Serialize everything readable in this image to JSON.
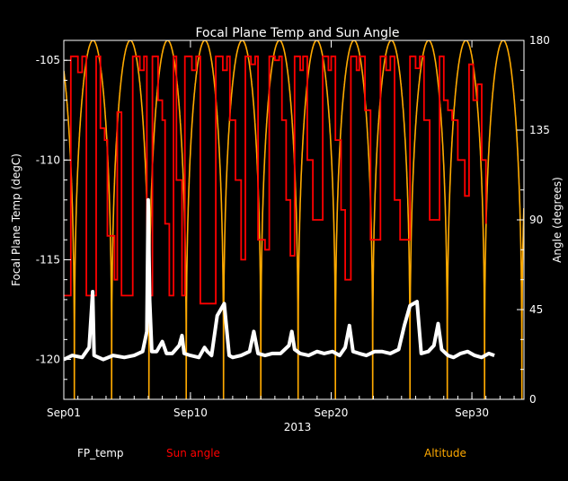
{
  "chart_data": {
    "type": "line",
    "title": "Focal Plane Temp and Sun Angle",
    "xlabel": "2013",
    "ylabel_left": "Focal Plane Temp (degC)",
    "ylabel_right": "Angle (degrees)",
    "x_ticks": [
      "Sep01",
      "Sep10",
      "Sep20",
      "Sep30"
    ],
    "x_tick_days": [
      1,
      10,
      20,
      30
    ],
    "xlim_days": [
      1,
      33.7
    ],
    "ylim_left": [
      -122,
      -104
    ],
    "ylim_right": [
      0,
      180
    ],
    "y_ticks_left": [
      -120,
      -115,
      -110,
      -105
    ],
    "y_ticks_right": [
      0,
      45,
      90,
      135,
      180
    ],
    "grid": false,
    "series": [
      {
        "name": "FP_temp",
        "axis": "left",
        "color": "#ffffff",
        "points": [
          [
            1.0,
            -120.0
          ],
          [
            1.6,
            -119.8
          ],
          [
            2.3,
            -119.9
          ],
          [
            2.8,
            -119.4
          ],
          [
            3.05,
            -116.6
          ],
          [
            3.15,
            -119.8
          ],
          [
            3.8,
            -120.0
          ],
          [
            4.5,
            -119.8
          ],
          [
            5.3,
            -119.9
          ],
          [
            6.0,
            -119.8
          ],
          [
            6.6,
            -119.6
          ],
          [
            6.9,
            -118.6
          ],
          [
            7.0,
            -112.0
          ],
          [
            7.1,
            -117.0
          ],
          [
            7.25,
            -119.6
          ],
          [
            7.6,
            -119.6
          ],
          [
            8.0,
            -119.1
          ],
          [
            8.3,
            -119.7
          ],
          [
            8.7,
            -119.7
          ],
          [
            9.2,
            -119.3
          ],
          [
            9.4,
            -118.8
          ],
          [
            9.55,
            -119.7
          ],
          [
            10.0,
            -119.8
          ],
          [
            10.6,
            -119.9
          ],
          [
            11.0,
            -119.4
          ],
          [
            11.2,
            -119.6
          ],
          [
            11.5,
            -119.8
          ],
          [
            11.9,
            -117.8
          ],
          [
            12.4,
            -117.2
          ],
          [
            12.75,
            -119.8
          ],
          [
            13.0,
            -119.9
          ],
          [
            13.6,
            -119.8
          ],
          [
            14.2,
            -119.6
          ],
          [
            14.5,
            -118.6
          ],
          [
            14.8,
            -119.7
          ],
          [
            15.3,
            -119.8
          ],
          [
            15.8,
            -119.7
          ],
          [
            16.4,
            -119.7
          ],
          [
            17.0,
            -119.3
          ],
          [
            17.2,
            -118.6
          ],
          [
            17.4,
            -119.5
          ],
          [
            17.8,
            -119.7
          ],
          [
            18.4,
            -119.8
          ],
          [
            19.0,
            -119.6
          ],
          [
            19.5,
            -119.7
          ],
          [
            20.1,
            -119.6
          ],
          [
            20.6,
            -119.8
          ],
          [
            21.0,
            -119.4
          ],
          [
            21.3,
            -118.3
          ],
          [
            21.55,
            -119.6
          ],
          [
            22.0,
            -119.7
          ],
          [
            22.5,
            -119.8
          ],
          [
            23.1,
            -119.6
          ],
          [
            23.6,
            -119.6
          ],
          [
            24.2,
            -119.7
          ],
          [
            24.8,
            -119.5
          ],
          [
            25.2,
            -118.3
          ],
          [
            25.6,
            -117.3
          ],
          [
            26.1,
            -117.1
          ],
          [
            26.4,
            -119.7
          ],
          [
            26.9,
            -119.6
          ],
          [
            27.3,
            -119.3
          ],
          [
            27.6,
            -118.2
          ],
          [
            27.85,
            -119.5
          ],
          [
            28.3,
            -119.8
          ],
          [
            28.7,
            -119.9
          ],
          [
            29.2,
            -119.7
          ],
          [
            29.7,
            -119.6
          ],
          [
            30.2,
            -119.8
          ],
          [
            30.7,
            -119.9
          ],
          [
            31.2,
            -119.7
          ],
          [
            31.6,
            -119.8
          ]
        ]
      },
      {
        "name": "Sun angle",
        "axis": "right",
        "color": "#ff0000",
        "points": [
          [
            1.0,
            52
          ],
          [
            1.3,
            52
          ],
          [
            1.5,
            172
          ],
          [
            2.0,
            164
          ],
          [
            2.3,
            172
          ],
          [
            2.6,
            52
          ],
          [
            3.0,
            52
          ],
          [
            3.3,
            172
          ],
          [
            3.6,
            136
          ],
          [
            3.9,
            130
          ],
          [
            4.1,
            82
          ],
          [
            4.6,
            60
          ],
          [
            4.8,
            144
          ],
          [
            5.1,
            52
          ],
          [
            5.6,
            52
          ],
          [
            5.9,
            172
          ],
          [
            6.4,
            165
          ],
          [
            6.7,
            172
          ],
          [
            6.9,
            52
          ],
          [
            7.1,
            52
          ],
          [
            7.3,
            172
          ],
          [
            7.7,
            150
          ],
          [
            8.0,
            140
          ],
          [
            8.2,
            88
          ],
          [
            8.5,
            52
          ],
          [
            8.8,
            172
          ],
          [
            9.0,
            110
          ],
          [
            9.4,
            52
          ],
          [
            9.6,
            172
          ],
          [
            10.1,
            165
          ],
          [
            10.4,
            172
          ],
          [
            10.7,
            48
          ],
          [
            11.5,
            48
          ],
          [
            11.8,
            172
          ],
          [
            12.3,
            165
          ],
          [
            12.6,
            172
          ],
          [
            12.8,
            140
          ],
          [
            13.2,
            110
          ],
          [
            13.6,
            70
          ],
          [
            13.9,
            172
          ],
          [
            14.3,
            168
          ],
          [
            14.6,
            172
          ],
          [
            14.8,
            80
          ],
          [
            15.3,
            75
          ],
          [
            15.6,
            172
          ],
          [
            16.0,
            170
          ],
          [
            16.3,
            172
          ],
          [
            16.5,
            140
          ],
          [
            16.8,
            100
          ],
          [
            17.1,
            72
          ],
          [
            17.4,
            172
          ],
          [
            17.8,
            165
          ],
          [
            18.0,
            172
          ],
          [
            18.3,
            120
          ],
          [
            18.7,
            90
          ],
          [
            19.0,
            90
          ],
          [
            19.4,
            172
          ],
          [
            19.8,
            165
          ],
          [
            20.0,
            172
          ],
          [
            20.3,
            130
          ],
          [
            20.7,
            95
          ],
          [
            21.0,
            60
          ],
          [
            21.4,
            172
          ],
          [
            21.8,
            165
          ],
          [
            22.0,
            172
          ],
          [
            22.4,
            145
          ],
          [
            22.8,
            80
          ],
          [
            23.2,
            80
          ],
          [
            23.5,
            172
          ],
          [
            23.9,
            165
          ],
          [
            24.2,
            172
          ],
          [
            24.5,
            100
          ],
          [
            24.9,
            80
          ],
          [
            25.3,
            80
          ],
          [
            25.6,
            172
          ],
          [
            26.0,
            166
          ],
          [
            26.3,
            172
          ],
          [
            26.6,
            140
          ],
          [
            27.0,
            90
          ],
          [
            27.4,
            90
          ],
          [
            27.7,
            172
          ],
          [
            28.0,
            150
          ],
          [
            28.3,
            145
          ],
          [
            28.6,
            140
          ],
          [
            29.0,
            120
          ],
          [
            29.5,
            102
          ],
          [
            29.8,
            168
          ],
          [
            30.1,
            150
          ],
          [
            30.4,
            158
          ],
          [
            30.7,
            120
          ],
          [
            31.0,
            88
          ]
        ]
      },
      {
        "name": "Altitude",
        "axis": "right",
        "color": "#ffaa00",
        "orbit_period_days": 2.65,
        "orbit_phase_start_day": 1.75,
        "max": 180,
        "min": 0
      }
    ]
  },
  "legend": {
    "fp_temp_label": "FP_temp",
    "sun_angle_label": "Sun angle",
    "altitude_label": "Altitude"
  }
}
